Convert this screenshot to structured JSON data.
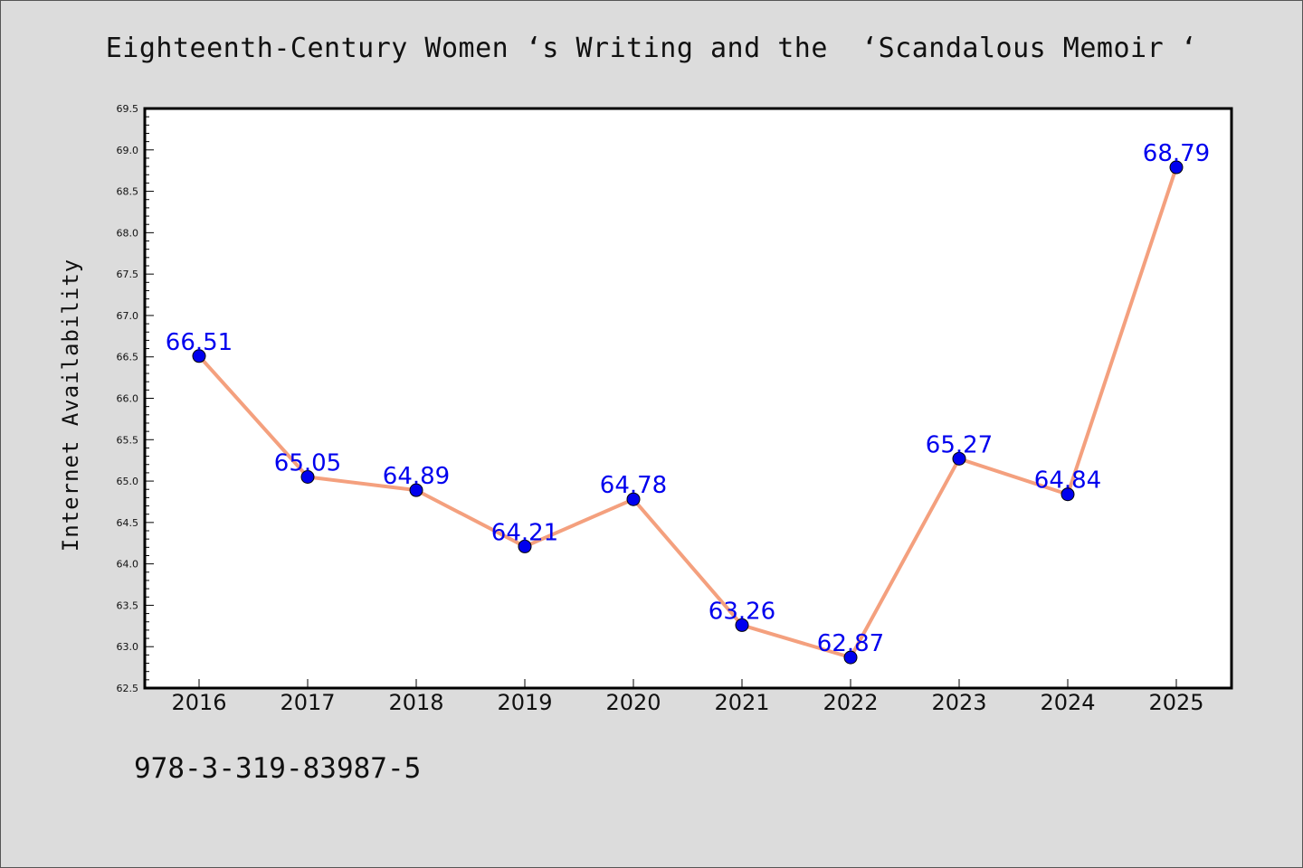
{
  "chart_data": {
    "type": "line",
    "title": "Eighteenth-Century Women ‘s Writing and the  ‘Scandalous Memoir ‘",
    "xlabel": "",
    "ylabel": "Internet Availability",
    "categories": [
      "2016",
      "2017",
      "2018",
      "2019",
      "2020",
      "2021",
      "2022",
      "2023",
      "2024",
      "2025"
    ],
    "series": [
      {
        "values": [
          66.51,
          65.05,
          64.89,
          64.21,
          64.78,
          63.26,
          62.87,
          65.27,
          64.84,
          68.79
        ]
      }
    ],
    "data_labels": [
      "66.51",
      "65.05",
      "64.89",
      "64.21",
      "64.78",
      "63.26",
      "62.87",
      "65.27",
      "64.84",
      "68.79"
    ],
    "ylim": [
      62.5,
      69.5
    ],
    "yticks": [
      "62.5",
      "63.0",
      "63.5",
      "64.0",
      "64.5",
      "65.0",
      "65.5",
      "66.0",
      "66.5",
      "67.0",
      "67.5",
      "68.0",
      "68.5",
      "69.0",
      "69.5"
    ],
    "grid": false,
    "legend": "none",
    "line_color": "#f4a07e",
    "marker_color": "#0000ee",
    "label_color": "#0000ee"
  },
  "footer": {
    "code": "978-3-319-83987-5"
  },
  "colors": {
    "background": "#dcdcdc",
    "plot_background": "#ffffff"
  }
}
